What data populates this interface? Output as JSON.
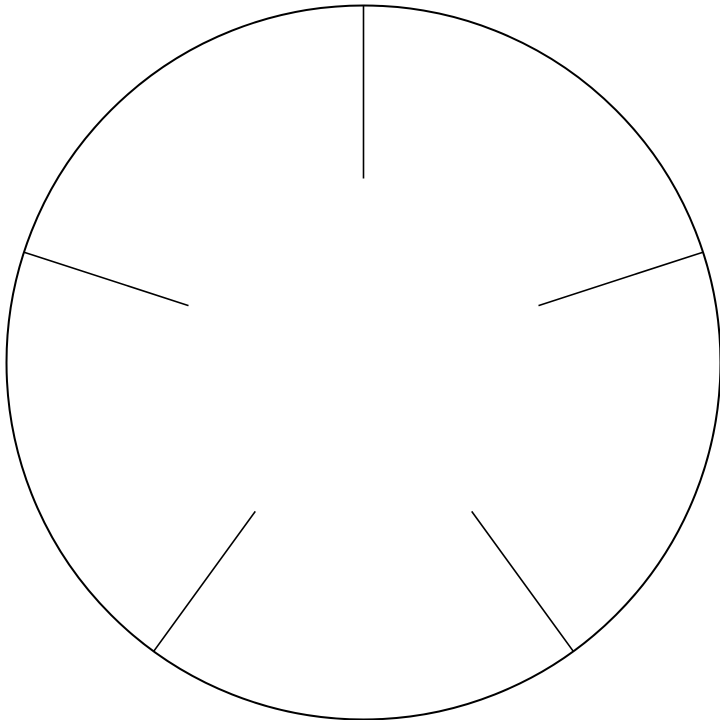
{
  "diagram": {
    "shape": "circle",
    "spoke_count": 5,
    "spoke_angles_deg": [
      90,
      18,
      -54,
      -126,
      162
    ],
    "colors": {
      "background": "#ffffff",
      "outline": "#000000",
      "spokes": "#000000"
    }
  }
}
